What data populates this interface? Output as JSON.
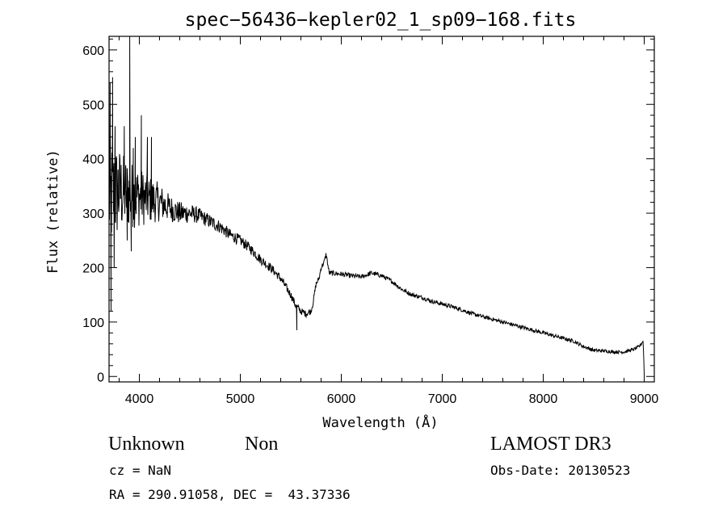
{
  "chart_data": {
    "type": "line",
    "title": "spec−56436−kepler02_1_sp09−168.fits",
    "xlabel": "Wavelength (Å)",
    "ylabel": "Flux (relative)",
    "xlim": [
      3700,
      9100
    ],
    "ylim": [
      -10,
      625
    ],
    "xticks": [
      4000,
      5000,
      6000,
      7000,
      8000,
      9000
    ],
    "yticks": [
      0,
      100,
      200,
      300,
      400,
      500,
      600
    ],
    "grid": false,
    "series": [
      {
        "name": "flux",
        "continuum": {
          "x": [
            3700,
            3800,
            3900,
            4000,
            4100,
            4200,
            4300,
            4400,
            4500,
            4600,
            4700,
            4800,
            4900,
            5000,
            5100,
            5200,
            5300,
            5400,
            5450,
            5500,
            5550,
            5600,
            5650,
            5700,
            5720,
            5750,
            5780,
            5800,
            5830,
            5850,
            5880,
            5900,
            6000,
            6100,
            6200,
            6300,
            6400,
            6500,
            6600,
            6700,
            6800,
            6900,
            7000,
            7100,
            7200,
            7300,
            7400,
            7500,
            7600,
            7700,
            7800,
            7900,
            8000,
            8100,
            8200,
            8300,
            8400,
            8500,
            8600,
            8700,
            8800,
            8900,
            8950,
            8990,
            9000
          ],
          "y": [
            330,
            340,
            335,
            330,
            325,
            320,
            310,
            300,
            300,
            295,
            285,
            275,
            260,
            250,
            235,
            215,
            200,
            180,
            165,
            150,
            130,
            120,
            115,
            120,
            135,
            170,
            180,
            200,
            210,
            225,
            190,
            190,
            188,
            185,
            183,
            190,
            185,
            175,
            160,
            150,
            145,
            138,
            133,
            128,
            122,
            115,
            110,
            105,
            100,
            95,
            90,
            85,
            80,
            75,
            70,
            65,
            55,
            48,
            47,
            45,
            45,
            50,
            55,
            65,
            5
          ]
        },
        "noise_profile": {
          "x": [
            3700,
            3850,
            4000,
            4300,
            4600,
            5000,
            5500,
            5800,
            6500,
            9000
          ],
          "amplitude": [
            110,
            70,
            55,
            25,
            14,
            10,
            7,
            5,
            4,
            3
          ]
        },
        "spikes": [
          {
            "x": 3710,
            "y": 540
          },
          {
            "x": 3720,
            "y": 120
          },
          {
            "x": 3735,
            "y": 550
          },
          {
            "x": 3750,
            "y": 200
          },
          {
            "x": 3760,
            "y": 460
          },
          {
            "x": 3790,
            "y": 380
          },
          {
            "x": 3850,
            "y": 460
          },
          {
            "x": 3880,
            "y": 250
          },
          {
            "x": 3905,
            "y": 625
          },
          {
            "x": 3920,
            "y": 230
          },
          {
            "x": 3940,
            "y": 420
          },
          {
            "x": 3960,
            "y": 440
          },
          {
            "x": 4020,
            "y": 480
          },
          {
            "x": 4080,
            "y": 440
          },
          {
            "x": 4120,
            "y": 440
          },
          {
            "x": 5560,
            "y": 85
          }
        ]
      }
    ]
  },
  "annotations": {
    "object_class": "Unknown",
    "subclass": "Non",
    "survey": "LAMOST DR3",
    "redshift": "cz = NaN",
    "obs_date": "Obs-Date: 20130523",
    "coords": "RA = 290.91058, DEC =  43.37336"
  }
}
